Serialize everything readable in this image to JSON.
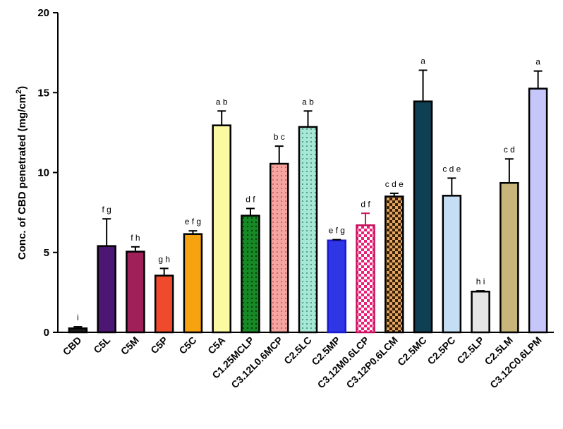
{
  "chart_data": {
    "type": "bar",
    "title": "",
    "xlabel": "",
    "ylabel_main": "Conc. of CBD penetrated (mg/cm",
    "ylabel_sup": "2",
    "ylabel_end": ")",
    "ylim": [
      0,
      20
    ],
    "yticks": [
      "0",
      "5",
      "10",
      "15",
      "20"
    ],
    "grid": false,
    "categories": [
      "CBD",
      "C5L",
      "C5M",
      "C5P",
      "C5C",
      "C5A",
      "C1.25MCLP",
      "C3.12L0.6MCP",
      "C2.5LC",
      "C2.5MP",
      "C3.12M0.6LCP",
      "C3.12P0.6LCM",
      "C2.5MC",
      "C2.5PC",
      "C2.5LP",
      "C2.5LM",
      "C3.12C0.6LPM"
    ],
    "values": [
      0.25,
      5.4,
      5.05,
      3.55,
      6.15,
      12.95,
      7.3,
      10.55,
      12.85,
      5.75,
      6.7,
      8.5,
      14.45,
      8.55,
      2.55,
      9.35,
      15.25
    ],
    "errors": [
      0.1,
      1.7,
      0.3,
      0.45,
      0.2,
      0.9,
      0.45,
      1.1,
      1.0,
      0.05,
      0.75,
      0.2,
      1.95,
      1.1,
      0.05,
      1.5,
      1.1
    ],
    "significance": [
      "i",
      "f g",
      "f h",
      "g h",
      "e f g",
      "a b",
      "d f",
      "b c",
      "a b",
      "e f g",
      "d f",
      "c d e",
      "a",
      "c d e",
      "h i",
      "c d",
      "a"
    ],
    "colors": [
      "#1a1a1a",
      "#4b1674",
      "#a0215a",
      "#f04a2c",
      "#f7a30f",
      "#fbfaa2",
      "#178a26",
      "#f6a4a0",
      "#a6e7d5",
      "#2e36e6",
      "#e81f77",
      "#8b4a12",
      "#0f3f52",
      "#c4def5",
      "#e5e5e5",
      "#c7b57a",
      "#c6c6fb"
    ],
    "patterns": [
      "solid",
      "solid",
      "solid",
      "solid",
      "solid",
      "solid",
      "dots",
      "dots",
      "dots",
      "solid",
      "checker",
      "checker",
      "solid",
      "solid",
      "solid",
      "solid",
      "solid"
    ]
  }
}
